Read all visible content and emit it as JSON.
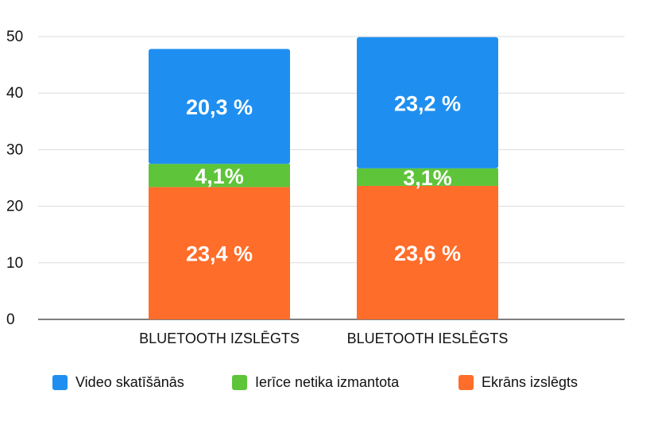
{
  "chart_data": {
    "type": "bar",
    "stacked": true,
    "title": "",
    "xlabel": "",
    "ylabel": "",
    "ylim": [
      0,
      50
    ],
    "yticks": [
      "0",
      "10",
      "20",
      "30",
      "40",
      "50"
    ],
    "grid": true,
    "legend_position": "bottom",
    "categories": [
      "BLUETOOTH IZSLĒGTS",
      "BLUETOOTH IESLĒGTS"
    ],
    "series": [
      {
        "name": "Ekrāns izslēgts",
        "color": "#FF6D2A",
        "values": [
          23.4,
          23.6
        ],
        "labels": [
          "23,4 %",
          "23,6 %"
        ]
      },
      {
        "name": "Ierīce netika izmantota",
        "color": "#5EC43A",
        "values": [
          4.1,
          3.1
        ],
        "labels": [
          "4,1%",
          "3,1%"
        ]
      },
      {
        "name": "Video skatīšānās",
        "color": "#1E8FF0",
        "values": [
          20.3,
          23.2
        ],
        "labels": [
          "20,3 %",
          "23,2 %"
        ]
      }
    ],
    "legend_order": [
      2,
      1,
      0
    ]
  }
}
